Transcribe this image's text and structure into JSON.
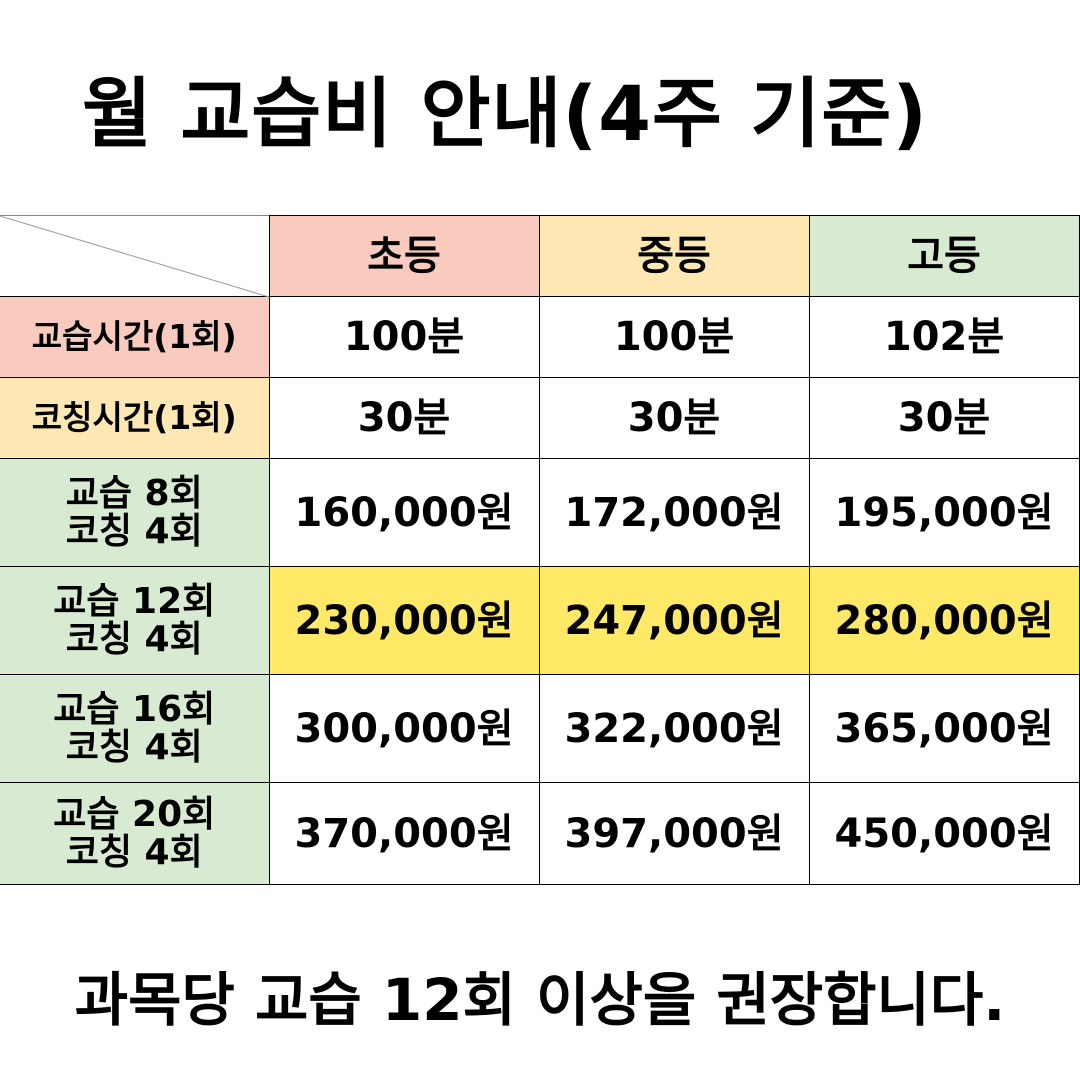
{
  "title": "월 교습비 안내(4주 기준)",
  "table": {
    "columns": [
      "초등",
      "중등",
      "고등"
    ],
    "rows": [
      {
        "label": "교습시간(1회)",
        "label_line1": "교습시간(1회)",
        "label_line2": "",
        "values": [
          "100분",
          "100분",
          "102분"
        ],
        "highlight": false
      },
      {
        "label": "코칭시간(1회)",
        "label_line1": "코칭시간(1회)",
        "label_line2": "",
        "values": [
          "30분",
          "30분",
          "30분"
        ],
        "highlight": false
      },
      {
        "label": "교습 8회 코칭 4회",
        "label_line1": "교습 8회",
        "label_line2": "코칭 4회",
        "values": [
          "160,000원",
          "172,000원",
          "195,000원"
        ],
        "highlight": false
      },
      {
        "label": "교습 12회 코칭 4회",
        "label_line1": "교습 12회",
        "label_line2": "코칭 4회",
        "values": [
          "230,000원",
          "247,000원",
          "280,000원"
        ],
        "highlight": true
      },
      {
        "label": "교습 16회 코칭 4회",
        "label_line1": "교습 16회",
        "label_line2": "코칭 4회",
        "values": [
          "300,000원",
          "322,000원",
          "365,000원"
        ],
        "highlight": false
      },
      {
        "label": "교습 20회 코칭 4회",
        "label_line1": "교습 20회",
        "label_line2": "코칭 4회",
        "values": [
          "370,000원",
          "397,000원",
          "450,000원"
        ],
        "highlight": false
      }
    ]
  },
  "footer": "과목당 교습 12회 이상을 권장합니다.",
  "colors": {
    "elementary": "#f9cbbf",
    "middle": "#fde8b4",
    "high": "#d9ead3",
    "highlight": "#ffe966"
  }
}
